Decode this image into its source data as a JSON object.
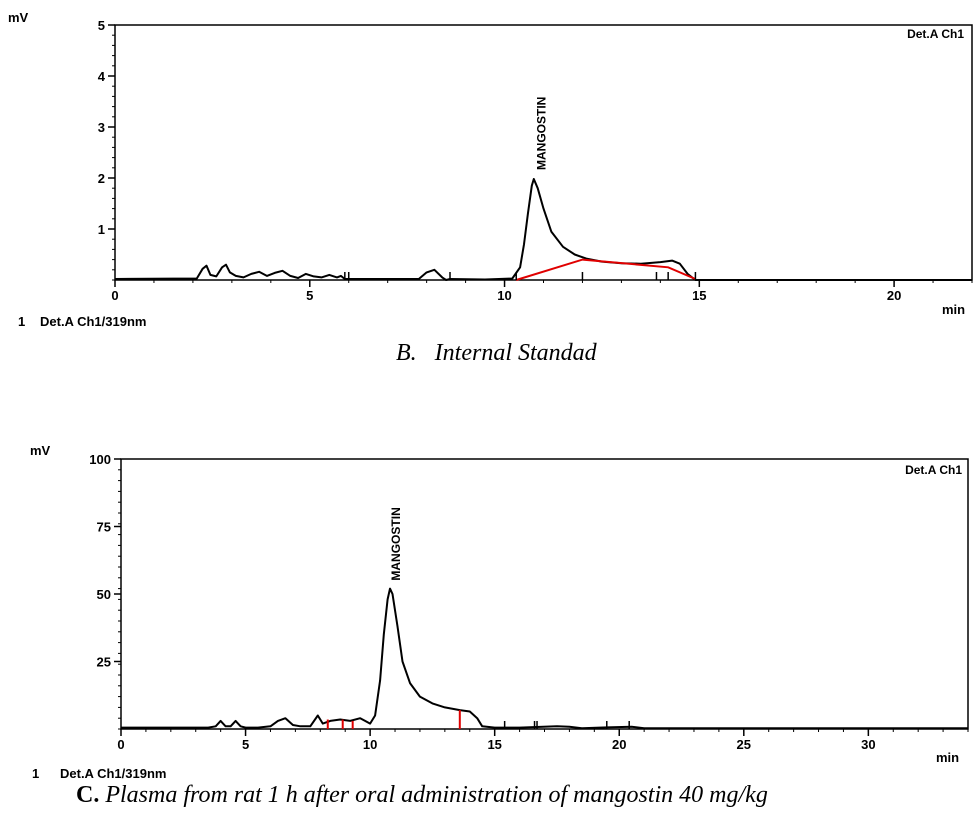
{
  "chart_data": [
    {
      "type": "line",
      "y_unit": "mV",
      "x_unit": "min",
      "detector_label": "Det.A Ch1",
      "legend": {
        "index": "1",
        "text": "Det.A Ch1/319nm"
      },
      "caption": {
        "letter": "B.",
        "text": "Internal Standad"
      },
      "xlim": [
        0,
        22
      ],
      "ylim": [
        0,
        5
      ],
      "x_ticks": [
        0,
        5,
        10,
        15,
        20
      ],
      "y_ticks": [
        1,
        2,
        3,
        4,
        5
      ],
      "y_tick_labels": [
        "1",
        "2",
        "3",
        "4",
        "5"
      ],
      "annotations": [
        {
          "text": "MANGOSTIN",
          "x": 10.8,
          "y": 2.0
        }
      ],
      "series": [
        {
          "color": "#000000",
          "x": [
            0,
            2.1,
            2.25,
            2.35,
            2.45,
            2.6,
            2.75,
            2.85,
            2.95,
            3.1,
            3.3,
            3.5,
            3.7,
            3.9,
            4.1,
            4.3,
            4.5,
            4.7,
            4.9,
            5.1,
            5.3,
            5.5,
            5.7,
            5.8,
            5.9,
            7.8,
            8.0,
            8.2,
            8.4,
            8.5,
            8.6,
            9.5,
            10.2,
            10.4,
            10.5,
            10.6,
            10.7,
            10.75,
            10.85,
            11.0,
            11.2,
            11.5,
            11.8,
            12.1,
            12.5,
            13.0,
            13.5,
            14.0,
            14.3,
            14.5,
            14.7,
            14.9,
            22.0
          ],
          "y": [
            0.02,
            0.03,
            0.22,
            0.28,
            0.1,
            0.07,
            0.25,
            0.3,
            0.15,
            0.08,
            0.05,
            0.12,
            0.16,
            0.08,
            0.14,
            0.18,
            0.08,
            0.04,
            0.12,
            0.07,
            0.05,
            0.1,
            0.05,
            0.08,
            0.02,
            0.02,
            0.15,
            0.2,
            0.05,
            0.0,
            0.02,
            0.01,
            0.03,
            0.25,
            0.7,
            1.3,
            1.85,
            1.98,
            1.8,
            1.4,
            0.95,
            0.65,
            0.5,
            0.42,
            0.36,
            0.33,
            0.32,
            0.35,
            0.38,
            0.32,
            0.12,
            0.0,
            0.0
          ]
        }
      ],
      "baselines": [
        {
          "color": "#e00000",
          "x": [
            10.3,
            12.0,
            14.2,
            14.9
          ],
          "y": [
            0.0,
            0.4,
            0.25,
            0.02
          ]
        }
      ],
      "event_ticks": [
        5.9,
        6.0,
        8.6,
        10.3,
        12.0,
        13.9,
        14.2,
        14.9
      ]
    },
    {
      "type": "line",
      "y_unit": "mV",
      "x_unit": "min",
      "detector_label": "Det.A Ch1",
      "legend": {
        "index": "1",
        "text": "Det.A Ch1/319nm"
      },
      "caption": {
        "letter": "C.",
        "text": "Plasma from rat 1 h after oral administration of mangostin 40 mg/kg"
      },
      "xlim": [
        0,
        34
      ],
      "ylim": [
        0,
        100
      ],
      "x_ticks": [
        0,
        5,
        10,
        15,
        20,
        25,
        30
      ],
      "y_ticks": [
        25,
        50,
        75,
        100
      ],
      "y_tick_labels": [
        "25",
        "50",
        "75",
        "100"
      ],
      "annotations": [
        {
          "text": "MANGOSTIN",
          "x": 10.8,
          "y": 52
        }
      ],
      "series": [
        {
          "color": "#000000",
          "x": [
            0,
            3.5,
            3.8,
            4.0,
            4.2,
            4.4,
            4.6,
            4.8,
            5.0,
            5.5,
            6.0,
            6.3,
            6.6,
            6.9,
            7.2,
            7.6,
            7.9,
            8.1,
            8.4,
            8.8,
            9.2,
            9.6,
            9.8,
            10.0,
            10.2,
            10.4,
            10.55,
            10.7,
            10.8,
            10.9,
            11.1,
            11.3,
            11.6,
            12.0,
            12.5,
            13.0,
            13.6,
            14.0,
            14.3,
            14.5,
            15.0,
            16.0,
            17.5,
            18.0,
            18.5,
            19.5,
            20.5,
            21.0,
            22.0,
            34.0
          ],
          "y": [
            0.5,
            0.5,
            1,
            3,
            1,
            1,
            3,
            1,
            0.5,
            0.5,
            1,
            3,
            4,
            1.5,
            1,
            1,
            5,
            2,
            3,
            3.5,
            3,
            4,
            3,
            2,
            5,
            18,
            35,
            48,
            52,
            50,
            38,
            25,
            17,
            12,
            9.5,
            8,
            7,
            6.5,
            4,
            1,
            0.5,
            0.5,
            1,
            0.8,
            0.3,
            0.6,
            0.8,
            0.3,
            0.3,
            0.3
          ]
        }
      ],
      "baselines": [],
      "peak_cuts": [
        {
          "x": 8.3,
          "y": 3.5
        },
        {
          "x": 8.9,
          "y": 3.5
        },
        {
          "x": 9.3,
          "y": 3.0
        },
        {
          "x": 13.6,
          "y": 7.0
        }
      ],
      "event_ticks": [
        15.4,
        16.6,
        16.7,
        19.5,
        20.4
      ]
    }
  ]
}
